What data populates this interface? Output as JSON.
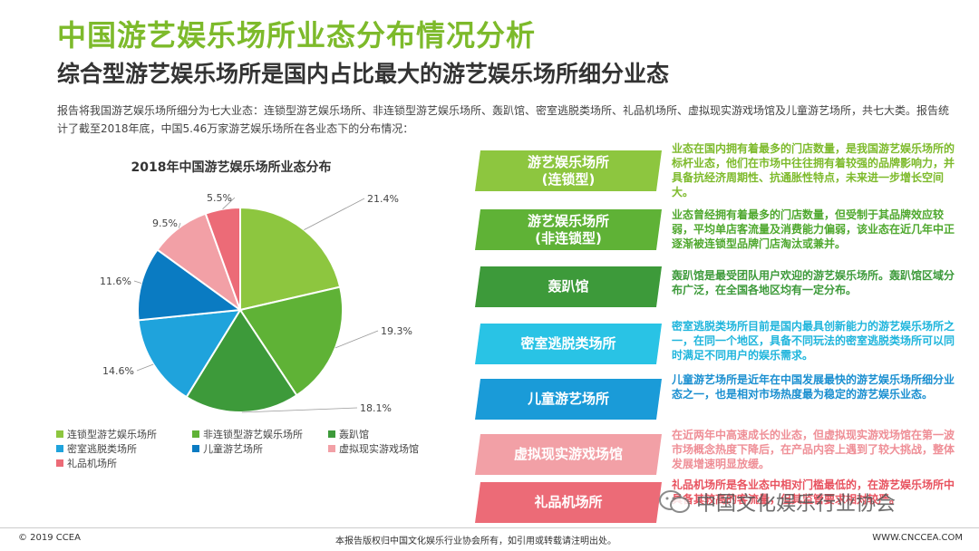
{
  "header": {
    "title": "中国游艺娱乐场所业态分布情况分析",
    "subtitle": "综合型游艺娱乐场所是国内占比最大的游艺娱乐场所细分业态",
    "intro": "报告将我国游艺娱乐场所细分为七大业态：连锁型游艺娱乐场所、非连锁型游艺娱乐场所、轰趴馆、密室逃脱类场所、礼品机场所、虚拟现实游戏场馆及儿童游艺场所，共七大类。报告统计了截至2018年底，中国5.46万家游艺娱乐场所在各业态下的分布情况："
  },
  "chart_data": {
    "type": "pie",
    "title": "2018年中国游艺娱乐场所业态分布",
    "categories": [
      "连锁型游艺娱乐场所",
      "非连锁型游艺娱乐场所",
      "轰趴馆",
      "密室逃脱类场所",
      "儿童游艺场所",
      "虚拟现实游戏场馆",
      "礼品机场所"
    ],
    "values": [
      21.4,
      19.3,
      18.1,
      14.6,
      11.6,
      9.5,
      5.5
    ],
    "labels": [
      "21.4%",
      "19.3%",
      "18.1%",
      "14.6%",
      "11.6%",
      "9.5%",
      "5.5%"
    ],
    "colors": [
      "#8dc63f",
      "#5fb236",
      "#3d9a3a",
      "#1fa3dc",
      "#0a7bc2",
      "#f2a0a6",
      "#ec6b77"
    ],
    "legend": "bottom"
  },
  "segments": [
    {
      "label_lines": [
        "游艺娱乐场所",
        "(连锁型)"
      ],
      "color": "#8dc63f",
      "text_color": "#7dba2b",
      "desc": "业态在国内拥有着最多的门店数量，是我国游艺娱乐场所的标杆业态，他们在市场中往往拥有着较强的品牌影响力，并具备抗经济周期性、抗通胀性特点，未来进一步增长空间大。"
    },
    {
      "label_lines": [
        "游艺娱乐场所",
        "(非连锁型)"
      ],
      "color": "#5fb236",
      "text_color": "#4fa82e",
      "desc": "业态曾经拥有着最多的门店数量，但受制于其品牌效应较弱，平均单店客流量及消费能力偏弱，该业态在近几年中正逐渐被连锁型品牌门店淘汰或兼并。"
    },
    {
      "label_lines": [
        "轰趴馆"
      ],
      "color": "#3d9a3a",
      "text_color": "#3d9a3a",
      "desc": "轰趴馆是最受团队用户欢迎的游艺娱乐场所。轰趴馆区域分布广泛，在全国各地区均有一定分布。"
    },
    {
      "label_lines": [
        "密室逃脱类场所"
      ],
      "color": "#29c3e5",
      "text_color": "#1fb5dc",
      "desc": "密室逃脱类场所目前是国内最具创新能力的游艺娱乐场所之一，在同一个地区，具备不同玩法的密室逃脱类场所可以同时满足不同用户的娱乐需求。"
    },
    {
      "label_lines": [
        "儿童游艺场所"
      ],
      "color": "#1a9bd8",
      "text_color": "#1a8fd0",
      "desc": "儿童游艺场所是近年在中国发展最快的游艺娱乐场所细分业态之一，也是相对市场热度最为稳定的游艺娱乐业态。"
    },
    {
      "label_lines": [
        "虚拟现实游戏场馆"
      ],
      "color": "#f2a0a6",
      "text_color": "#ef8f97",
      "desc": "在近两年中高速成长的业态，但虚拟现实游戏场馆在第一波市场概念热度下降后，在产品内容上遇到了较大挑战，整体发展增速明显放缓。"
    },
    {
      "label_lines": [
        "礼品机场所"
      ],
      "color": "#ec6b77",
      "text_color": "#e8525f",
      "desc": "礼品机场所是各业态中相对门槛最低的，在游艺娱乐场所中具备其较高的客流量，但其监管要求相对较严。"
    }
  ],
  "watermark": "中国文化娱乐行业协会",
  "footer": {
    "copyright": "© 2019 CCEA",
    "notice": "本报告版权归中国文化娱乐行业协会所有，如引用或转载请注明出处。",
    "url": "WWW.CNCCEA.COM"
  }
}
